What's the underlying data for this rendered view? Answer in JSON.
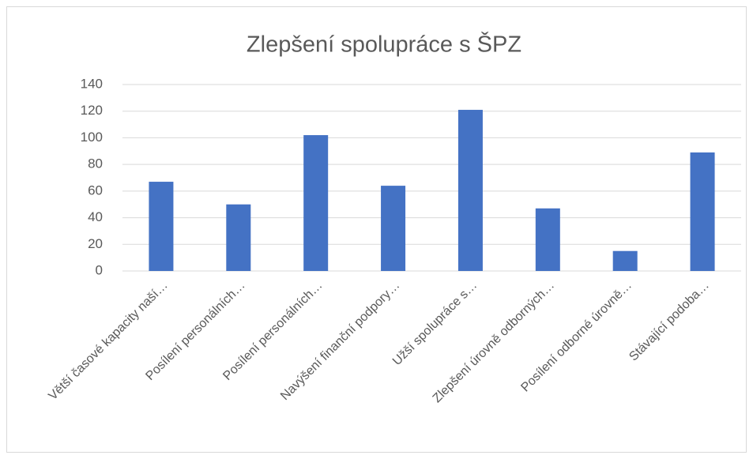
{
  "chart_data": {
    "type": "bar",
    "title": "Zlepšení spolupráce s ŠPZ",
    "categories": [
      "Větší časové kapacity naší…",
      "Posílení personálních…",
      "Posílení personálních…",
      "Navýšení finanční podpory…",
      "Užší spolupráce s…",
      "Zlepšení úrovně odborných…",
      "Posílení odborné úrovně…",
      "Stávající podoba…"
    ],
    "values": [
      67,
      50,
      102,
      64,
      121,
      47,
      15,
      89
    ],
    "color": "#4472c4",
    "ylim": [
      0,
      140
    ],
    "yticks": [
      0,
      20,
      40,
      60,
      80,
      100,
      120,
      140
    ],
    "grid": true
  }
}
